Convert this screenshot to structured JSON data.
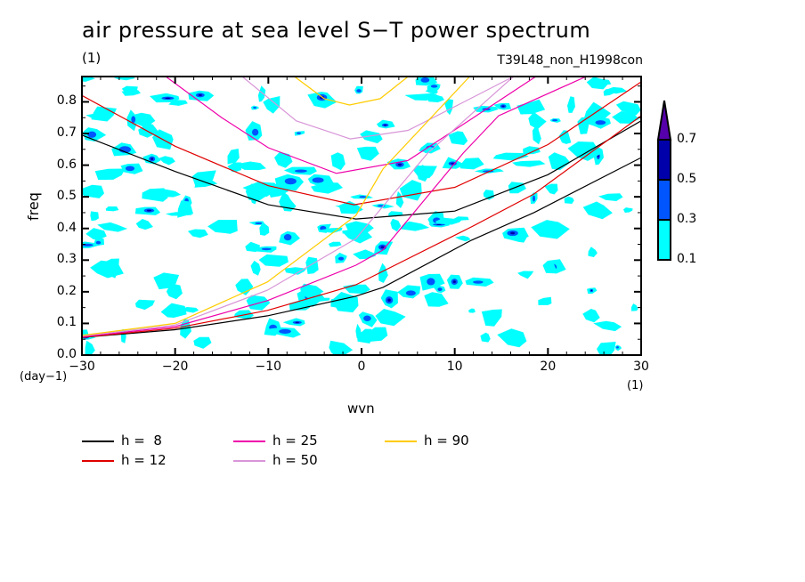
{
  "chart_data": {
    "type": "contour",
    "title": "air pressure at sea level S−T power spectrum",
    "subtitle_left": "(1)",
    "subtitle_right": "T39L48_non_H1998con",
    "xlabel": "wvn",
    "ylabel": "freq",
    "x_unit": "(1)",
    "y_unit": "(day−1)",
    "xlim": [
      -30,
      30
    ],
    "ylim": [
      0,
      0.88
    ],
    "x_ticks": [
      "−30",
      "−20",
      "−10",
      "0",
      "10",
      "20",
      "30"
    ],
    "x_tick_values": [
      -30,
      -20,
      -10,
      0,
      10,
      20,
      30
    ],
    "y_ticks": [
      "0.0",
      "0.1",
      "0.2",
      "0.3",
      "0.4",
      "0.5",
      "0.6",
      "0.7",
      "0.8"
    ],
    "y_tick_values": [
      0,
      0.1,
      0.2,
      0.3,
      0.4,
      0.5,
      0.6,
      0.7,
      0.8
    ],
    "colorbar": {
      "levels": [
        "0.1",
        "0.3",
        "0.5",
        "0.7"
      ],
      "level_values": [
        0.1,
        0.3,
        0.5,
        0.7
      ],
      "colors": [
        "#00ffff",
        "#0055ff",
        "#0000aa",
        "#5500aa"
      ],
      "extend": "max"
    },
    "series": [
      {
        "name": "h =  8",
        "color": "#000000",
        "branches": [
          {
            "x": [
              -30,
              -20,
              -10,
              -0.6,
              10,
              20,
              30
            ],
            "y": [
              0.695,
              0.58,
              0.475,
              0.43,
              0.455,
              0.57,
              0.74
            ]
          },
          {
            "x": [
              -30,
              -20,
              -10.1,
              -0.6,
              2.3,
              11.8,
              18.5,
              30
            ],
            "y": [
              0.056,
              0.08,
              0.124,
              0.186,
              0.214,
              0.363,
              0.45,
              0.624
            ]
          }
        ]
      },
      {
        "name": "h = 12",
        "color": "#e00000",
        "branches": [
          {
            "x": [
              -30,
              -20,
              -10,
              -0.8,
              10,
              20,
              30
            ],
            "y": [
              0.82,
              0.66,
              0.535,
              0.475,
              0.53,
              0.665,
              0.863
            ]
          },
          {
            "x": [
              -30,
              -20,
              -10.1,
              -0.6,
              11.8,
              18.5,
              30
            ],
            "y": [
              0.056,
              0.085,
              0.141,
              0.222,
              0.405,
              0.509,
              0.756
            ]
          }
        ]
      },
      {
        "name": "h = 25",
        "color": "#ee00aa",
        "branches": [
          {
            "x": [
              -21,
              -15,
              -10,
              -2.7,
              5,
              12,
              18.7
            ],
            "y": [
              0.88,
              0.75,
              0.655,
              0.574,
              0.615,
              0.75,
              0.88
            ]
          },
          {
            "x": [
              -30,
              -20,
              -10.1,
              -0.6,
              2.3,
              10.9,
              14.7,
              24.1
            ],
            "y": [
              0.058,
              0.09,
              0.172,
              0.284,
              0.332,
              0.638,
              0.756,
              0.88
            ]
          }
        ]
      },
      {
        "name": "h = 50",
        "color": "#d896d8",
        "branches": [
          {
            "x": [
              -12.8,
              -7,
              -1.2,
              5,
              11,
              16.3
            ],
            "y": [
              0.88,
              0.74,
              0.683,
              0.71,
              0.8,
              0.88
            ]
          },
          {
            "x": [
              -30,
              -20,
              -10.1,
              -0.6,
              7.1,
              16.3
            ],
            "y": [
              0.06,
              0.095,
              0.205,
              0.368,
              0.638,
              0.88
            ]
          }
        ]
      },
      {
        "name": "h = 90",
        "color": "#ffcc00",
        "branches": [
          {
            "x": [
              -7.2,
              -4,
              -1.3,
              2,
              5
            ],
            "y": [
              0.88,
              0.81,
              0.79,
              0.81,
              0.88
            ]
          },
          {
            "x": [
              -30,
              -20,
              -10.1,
              -0.6,
              2.3,
              11.6
            ],
            "y": [
              0.062,
              0.1,
              0.231,
              0.441,
              0.588,
              0.88
            ]
          }
        ]
      }
    ],
    "legend_position": "bottom-left"
  }
}
